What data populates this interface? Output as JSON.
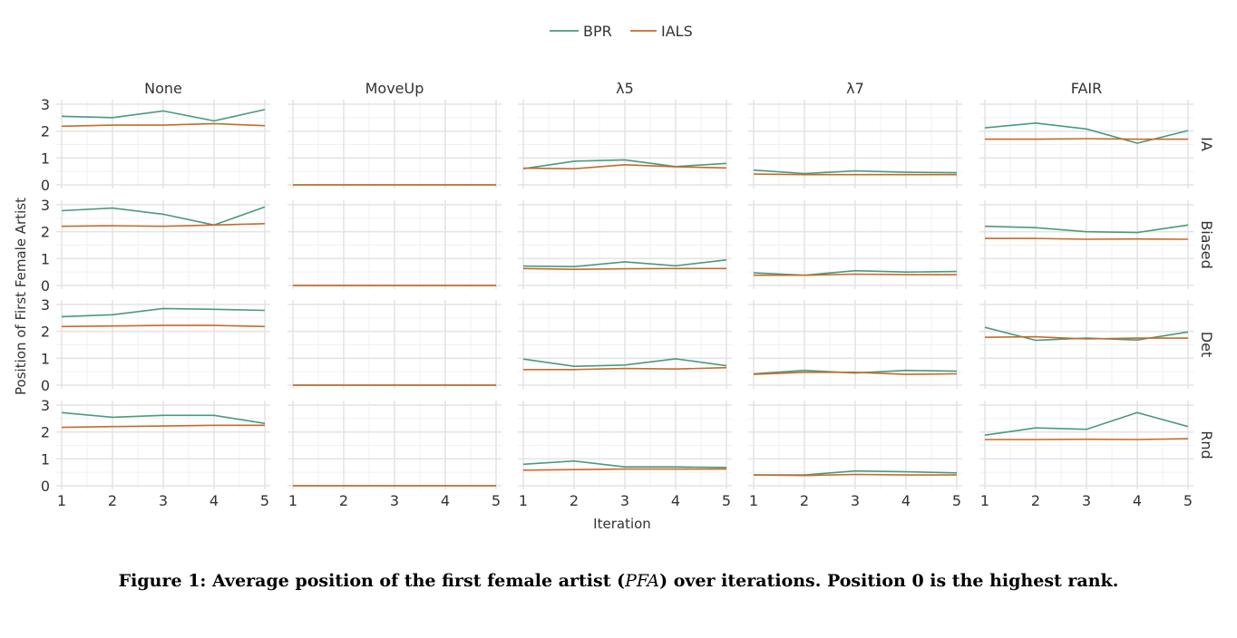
{
  "chart_data": {
    "type": "line",
    "xlabel": "Iteration",
    "ylabel": "Position of First Female Artist",
    "x": [
      1,
      2,
      3,
      4,
      5
    ],
    "ylim": [
      0,
      3
    ],
    "yticks": [
      0,
      1,
      2,
      3
    ],
    "grid": true,
    "legend_position": "top-center",
    "legend": [
      {
        "name": "BPR",
        "color": "#4a9a7d"
      },
      {
        "name": "IALS",
        "color": "#c9692a"
      }
    ],
    "columns": [
      "None",
      "MoveUp",
      "λ5",
      "λ7",
      "FAIR"
    ],
    "rows": [
      "IA",
      "Biased",
      "Det",
      "Rnd"
    ],
    "panels": {
      "IA": {
        "None": {
          "BPR": [
            2.55,
            2.5,
            2.75,
            2.38,
            2.8
          ],
          "IALS": [
            2.18,
            2.22,
            2.22,
            2.28,
            2.2
          ]
        },
        "MoveUp": {
          "BPR": [
            0,
            0,
            0,
            0,
            0
          ],
          "IALS": [
            0,
            0,
            0,
            0,
            0
          ]
        },
        "λ5": {
          "BPR": [
            0.6,
            0.88,
            0.93,
            0.68,
            0.8
          ],
          "IALS": [
            0.62,
            0.6,
            0.75,
            0.67,
            0.63
          ]
        },
        "λ7": {
          "BPR": [
            0.55,
            0.42,
            0.52,
            0.47,
            0.45
          ],
          "IALS": [
            0.4,
            0.38,
            0.38,
            0.38,
            0.38
          ]
        },
        "FAIR": {
          "BPR": [
            2.12,
            2.3,
            2.08,
            1.55,
            2.02
          ],
          "IALS": [
            1.7,
            1.7,
            1.72,
            1.7,
            1.7
          ]
        }
      },
      "Biased": {
        "None": {
          "BPR": [
            2.78,
            2.88,
            2.65,
            2.25,
            2.92
          ],
          "IALS": [
            2.2,
            2.22,
            2.2,
            2.25,
            2.3
          ]
        },
        "MoveUp": {
          "BPR": [
            0,
            0,
            0,
            0,
            0
          ],
          "IALS": [
            0,
            0,
            0,
            0,
            0
          ]
        },
        "λ5": {
          "BPR": [
            0.72,
            0.7,
            0.88,
            0.73,
            0.95
          ],
          "IALS": [
            0.63,
            0.6,
            0.62,
            0.63,
            0.63
          ]
        },
        "λ7": {
          "BPR": [
            0.47,
            0.38,
            0.55,
            0.5,
            0.52
          ],
          "IALS": [
            0.38,
            0.38,
            0.42,
            0.4,
            0.4
          ]
        },
        "FAIR": {
          "BPR": [
            2.2,
            2.15,
            2.0,
            1.97,
            2.25
          ],
          "IALS": [
            1.75,
            1.75,
            1.72,
            1.73,
            1.72
          ]
        }
      },
      "Det": {
        "None": {
          "BPR": [
            2.55,
            2.62,
            2.85,
            2.82,
            2.78
          ],
          "IALS": [
            2.18,
            2.2,
            2.22,
            2.22,
            2.18
          ]
        },
        "MoveUp": {
          "BPR": [
            0,
            0,
            0,
            0,
            0
          ],
          "IALS": [
            0,
            0,
            0,
            0,
            0
          ]
        },
        "λ5": {
          "BPR": [
            0.97,
            0.7,
            0.75,
            0.98,
            0.72
          ],
          "IALS": [
            0.58,
            0.58,
            0.62,
            0.6,
            0.65
          ]
        },
        "λ7": {
          "BPR": [
            0.42,
            0.55,
            0.45,
            0.55,
            0.52
          ],
          "IALS": [
            0.4,
            0.48,
            0.48,
            0.4,
            0.42
          ]
        },
        "FAIR": {
          "BPR": [
            2.15,
            1.67,
            1.75,
            1.68,
            1.98
          ],
          "IALS": [
            1.78,
            1.8,
            1.72,
            1.75,
            1.75
          ]
        }
      },
      "Rnd": {
        "None": {
          "BPR": [
            2.72,
            2.55,
            2.62,
            2.62,
            2.32
          ],
          "IALS": [
            2.17,
            2.2,
            2.22,
            2.25,
            2.25
          ]
        },
        "MoveUp": {
          "BPR": [
            0,
            0,
            0,
            0,
            0
          ],
          "IALS": [
            0,
            0,
            0,
            0,
            0
          ]
        },
        "λ5": {
          "BPR": [
            0.8,
            0.92,
            0.7,
            0.7,
            0.68
          ],
          "IALS": [
            0.58,
            0.6,
            0.62,
            0.62,
            0.62
          ]
        },
        "λ7": {
          "BPR": [
            0.4,
            0.4,
            0.55,
            0.52,
            0.48
          ],
          "IALS": [
            0.4,
            0.38,
            0.42,
            0.4,
            0.4
          ]
        },
        "FAIR": {
          "BPR": [
            1.88,
            2.15,
            2.1,
            2.72,
            2.2
          ],
          "IALS": [
            1.72,
            1.72,
            1.73,
            1.72,
            1.75
          ]
        }
      }
    }
  },
  "caption": {
    "label": "Figure 1:",
    "text_before": " Average position of the first female artist (",
    "text_italic": "PFA",
    "text_after": ") over iterations. Position 0 is the highest rank."
  }
}
